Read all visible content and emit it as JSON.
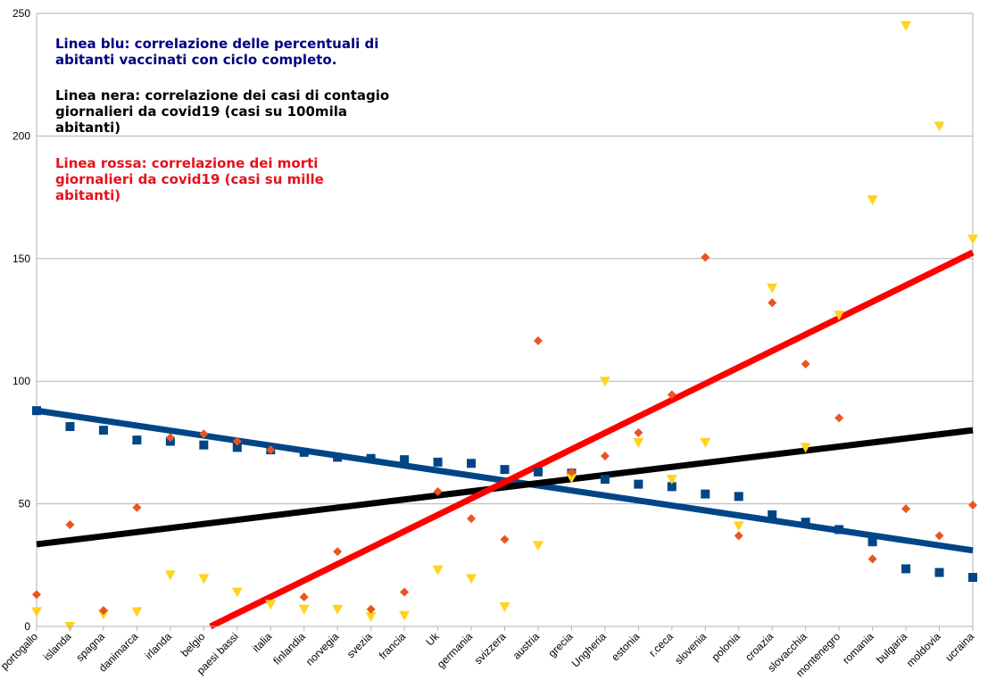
{
  "annotations": {
    "blue": "Linea blu: correlazione delle percentuali di\nabitanti vaccinati con ciclo completo.",
    "black": "Linea nera: correlazione dei casi di contagio\ngiornalieri da covid19 (casi su 100mila\nabitanti)",
    "red": "Linea rossa: correlazione dei morti\ngiornalieri da covid19 (casi su mille\nabitanti)"
  },
  "chart_data": {
    "type": "scatter",
    "categories": [
      "portogallo",
      "islanda",
      "spagna",
      "danimarca",
      "irlanda",
      "belgio",
      "paesi bassi",
      "italia",
      "finlandia",
      "norvegia",
      "svezia",
      "francia",
      "Uk",
      "germania",
      "svizzera",
      "austria",
      "grecia",
      "Ungheria",
      "estonia",
      "r.ceca",
      "slovenia",
      "polonia",
      "croazia",
      "slovacchia",
      "montenegro",
      "romania",
      "bulgaria",
      "moldovia",
      "ucraina"
    ],
    "ylim": [
      0,
      250
    ],
    "yticks": [
      0,
      50,
      100,
      150,
      200,
      250
    ],
    "grid": true,
    "series": [
      {
        "color": "#004586",
        "marker": "square",
        "values": [
          88,
          81.5,
          80,
          76,
          75.5,
          74,
          73,
          72,
          71,
          69,
          68.5,
          68,
          67,
          66.5,
          64,
          63,
          62.5,
          60,
          58,
          57,
          54,
          53,
          45.5,
          42.5,
          39.5,
          34.5,
          23.5,
          22,
          20
        ]
      },
      {
        "color": "#ffd320",
        "marker": "triangle-down",
        "values": [
          6,
          0,
          5,
          6,
          21,
          19.5,
          14,
          9,
          7,
          7,
          4,
          4.5,
          23,
          19.5,
          8,
          33,
          60.5,
          100,
          75,
          60,
          75,
          41,
          138,
          73,
          127,
          174,
          245,
          204,
          158
        ]
      },
      {
        "color": "#e8561f",
        "marker": "diamond",
        "values": [
          13,
          41.5,
          6.5,
          48.5,
          77,
          78.5,
          75.5,
          72,
          12,
          30.5,
          7,
          14,
          55,
          44,
          35.5,
          116.5,
          63,
          69.5,
          79,
          94.5,
          150.5,
          37,
          132,
          107,
          85,
          27.5,
          48,
          37,
          49.5
        ]
      }
    ],
    "trendlines": [
      {
        "color": "#004586",
        "start": 88,
        "end": 31
      },
      {
        "color": "#000000",
        "start": 33.5,
        "end": 80
      },
      {
        "color": "#ff0000",
        "start_index": 5.2,
        "start": 0,
        "end": 152.5
      }
    ]
  }
}
